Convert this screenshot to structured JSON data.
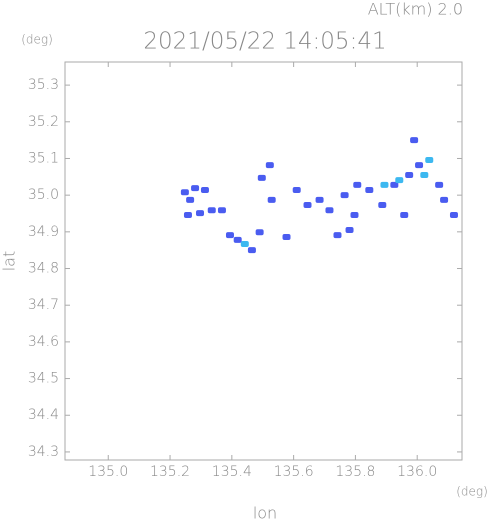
{
  "chart_data": {
    "type": "scatter",
    "title": "2021/05/22 14:05:41",
    "subtitle": "ALT(km)  2.0",
    "x_label": "lon",
    "y_label": "lat",
    "x_unit": "(deg)",
    "y_unit": "(deg)",
    "xlim": [
      134.86,
      136.145
    ],
    "ylim": [
      34.278,
      35.363
    ],
    "xticks": [
      {
        "value": 135,
        "label": "135.0"
      },
      135.2,
      135.4,
      135.6,
      135.8,
      {
        "value": 136,
        "label": "136.0"
      }
    ],
    "yticks": [
      34.3,
      34.4,
      34.5,
      34.6,
      34.7,
      34.8,
      34.9,
      {
        "value": 35,
        "label": "35.0"
      },
      35.1,
      35.2,
      35.3
    ],
    "series": [
      {
        "color": "#4a5cf0",
        "x": [
          135.248,
          135.281,
          135.313,
          135.265,
          135.297,
          135.335,
          135.258,
          135.368,
          135.394,
          135.419,
          135.465,
          135.523,
          135.497,
          135.529,
          135.577,
          135.61,
          135.645,
          135.684,
          135.716,
          135.765,
          135.797,
          135.781,
          135.806,
          135.845,
          135.887,
          135.926,
          135.958,
          135.974,
          136.006,
          135.99,
          136.071,
          136.087,
          136.119,
          135.49,
          135.742
        ],
        "values": [
          35.008,
          35.019,
          35.014,
          34.987,
          34.951,
          34.959,
          34.946,
          34.959,
          34.891,
          34.878,
          34.85,
          35.082,
          35.047,
          34.987,
          34.886,
          35.014,
          34.973,
          34.987,
          34.959,
          35.0,
          34.946,
          34.905,
          35.028,
          35.014,
          34.973,
          35.028,
          34.946,
          35.055,
          35.082,
          35.15,
          35.028,
          34.987,
          34.946,
          34.899,
          34.891
        ]
      },
      {
        "color": "#3cb8f0",
        "x": [
          135.442,
          136.039,
          136.023,
          135.942,
          135.894
        ],
        "values": [
          34.867,
          35.096,
          35.055,
          35.041,
          35.028
        ]
      }
    ]
  }
}
